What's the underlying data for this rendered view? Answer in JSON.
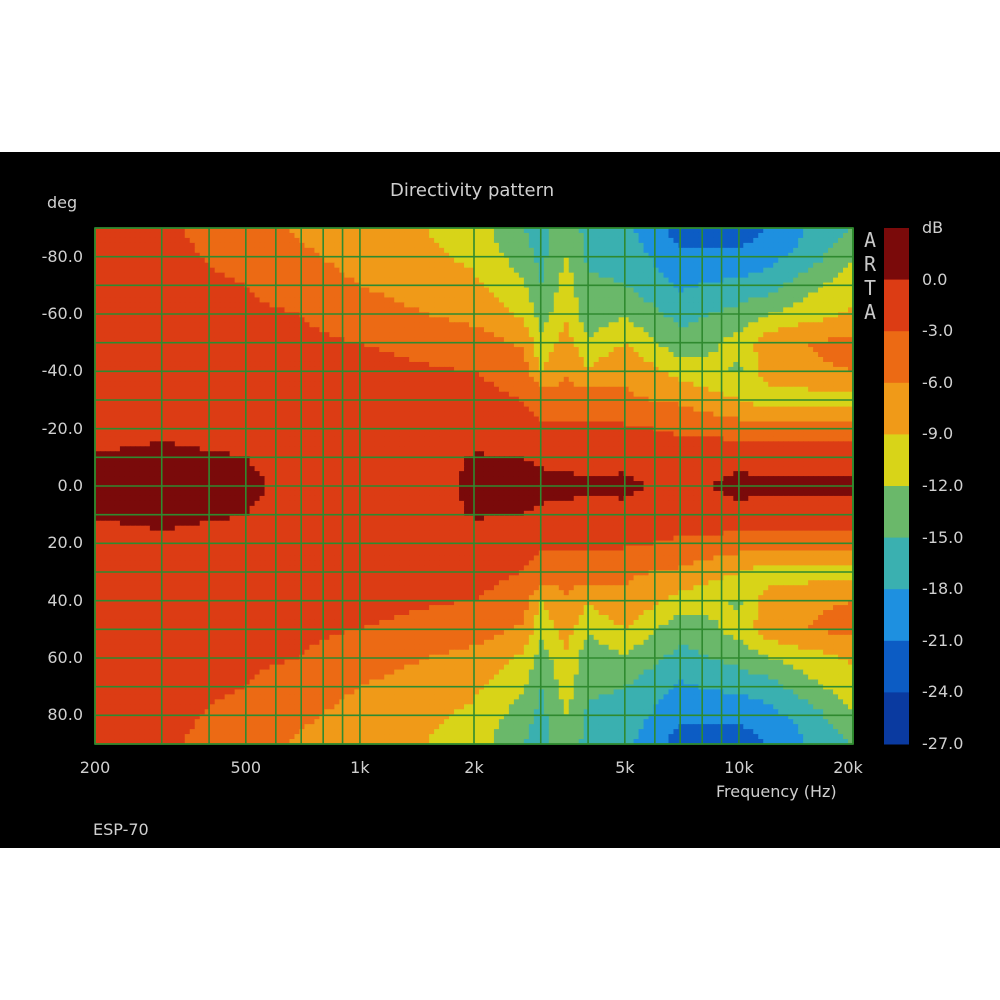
{
  "chart_data": {
    "type": "heatmap",
    "title": "Directivity pattern",
    "xlabel": "Frequency (Hz)",
    "ylabel": "deg",
    "x_scale": "log",
    "xlim": [
      200,
      20000
    ],
    "ylim": [
      -90,
      90
    ],
    "x_tick_values": [
      200,
      500,
      1000,
      2000,
      5000,
      10000,
      20000
    ],
    "x_tick_labels": [
      "200",
      "500",
      "1k",
      "2k",
      "5k",
      "10k",
      "20k"
    ],
    "y_tick_values": [
      -80,
      -60,
      -40,
      -20,
      0,
      20,
      40,
      60,
      80
    ],
    "y_tick_labels": [
      "-80.0",
      "-60.0",
      "-40.0",
      "-20.0",
      "0.0",
      "20.0",
      "40.0",
      "60.0",
      "80.0"
    ],
    "grid": true,
    "grid_color": "#2f8a2f",
    "colorbar": {
      "unit": "dB",
      "levels": [
        0.0,
        -3.0,
        -6.0,
        -9.0,
        -12.0,
        -15.0,
        -18.0,
        -21.0,
        -24.0,
        -27.0
      ],
      "labels": [
        "0.0",
        "-3.0",
        "-6.0",
        "-9.0",
        "-12.0",
        "-15.0",
        "-18.0",
        "-21.0",
        "-24.0",
        "-27.0"
      ],
      "colors": [
        "#7a0a0a",
        "#dc3c14",
        "#ec6a14",
        "#f09a18",
        "#d8d418",
        "#6ab86a",
        "#3ab0b0",
        "#1e90e0",
        "#0c5cc4",
        "#0a3aa0"
      ]
    },
    "freq_hz": [
      200,
      300,
      500,
      700,
      1000,
      1500,
      2000,
      2700,
      3000,
      3500,
      4000,
      5000,
      7000,
      10000,
      12000,
      15000,
      20000
    ],
    "angles_deg": [
      0,
      10,
      20,
      30,
      40,
      50,
      60,
      70,
      80,
      90
    ],
    "levels_db": [
      [
        0.5,
        1.0,
        0.5,
        -0.8,
        -1.5,
        -1.0,
        0.5,
        0.5,
        0.5,
        0.5,
        0.3,
        0.4,
        -0.5,
        0.5,
        0.4,
        0.5,
        0.5
      ],
      [
        0.2,
        0.6,
        0.0,
        -1.0,
        -1.5,
        -1.0,
        0.2,
        0.0,
        -0.3,
        -0.5,
        -0.6,
        -0.5,
        -1.5,
        -0.5,
        -1.0,
        -0.8,
        -1.0
      ],
      [
        -1.0,
        -0.5,
        -1.0,
        -1.5,
        -1.8,
        -1.5,
        -1.0,
        -2.0,
        -2.5,
        -2.5,
        -2.5,
        -2.5,
        -3.5,
        -4.5,
        -5.0,
        -4.5,
        -4.5
      ],
      [
        -1.5,
        -1.2,
        -1.5,
        -1.8,
        -2.0,
        -2.0,
        -2.0,
        -3.0,
        -4.0,
        -4.5,
        -4.5,
        -5.5,
        -6.5,
        -9.0,
        -10.5,
        -10.5,
        -10.0
      ],
      [
        -2.0,
        -1.8,
        -2.0,
        -2.2,
        -2.5,
        -2.8,
        -3.0,
        -4.5,
        -9.0,
        -6.5,
        -8.5,
        -6.5,
        -10.0,
        -12.5,
        -7.5,
        -6.5,
        -6.0
      ],
      [
        -2.0,
        -2.0,
        -2.2,
        -2.5,
        -3.0,
        -3.5,
        -4.5,
        -6.5,
        -11.0,
        -7.5,
        -11.5,
        -9.0,
        -14.0,
        -11.0,
        -7.0,
        -6.0,
        -5.0
      ],
      [
        -2.0,
        -2.0,
        -2.5,
        -3.0,
        -4.5,
        -6.0,
        -7.0,
        -9.5,
        -13.5,
        -9.5,
        -14.0,
        -12.5,
        -16.0,
        -14.0,
        -12.0,
        -10.5,
        -8.5
      ],
      [
        -2.0,
        -2.0,
        -3.0,
        -4.5,
        -6.0,
        -7.5,
        -8.5,
        -11.5,
        -15.0,
        -10.5,
        -14.5,
        -15.0,
        -18.5,
        -17.0,
        -16.5,
        -13.0,
        -10.5
      ],
      [
        -2.0,
        -2.2,
        -4.0,
        -5.5,
        -7.0,
        -8.5,
        -9.5,
        -13.5,
        -16.0,
        -12.0,
        -15.5,
        -16.0,
        -20.5,
        -20.5,
        -19.0,
        -17.0,
        -12.0
      ],
      [
        -2.0,
        -2.5,
        -4.5,
        -6.5,
        -7.5,
        -9.0,
        -10.5,
        -15.0,
        -16.5,
        -13.0,
        -16.0,
        -17.0,
        -22.5,
        -22.5,
        -21.0,
        -18.0,
        -15.0
      ]
    ]
  },
  "watermark": [
    "A",
    "R",
    "T",
    "A"
  ],
  "footer_label": "ESP-70"
}
